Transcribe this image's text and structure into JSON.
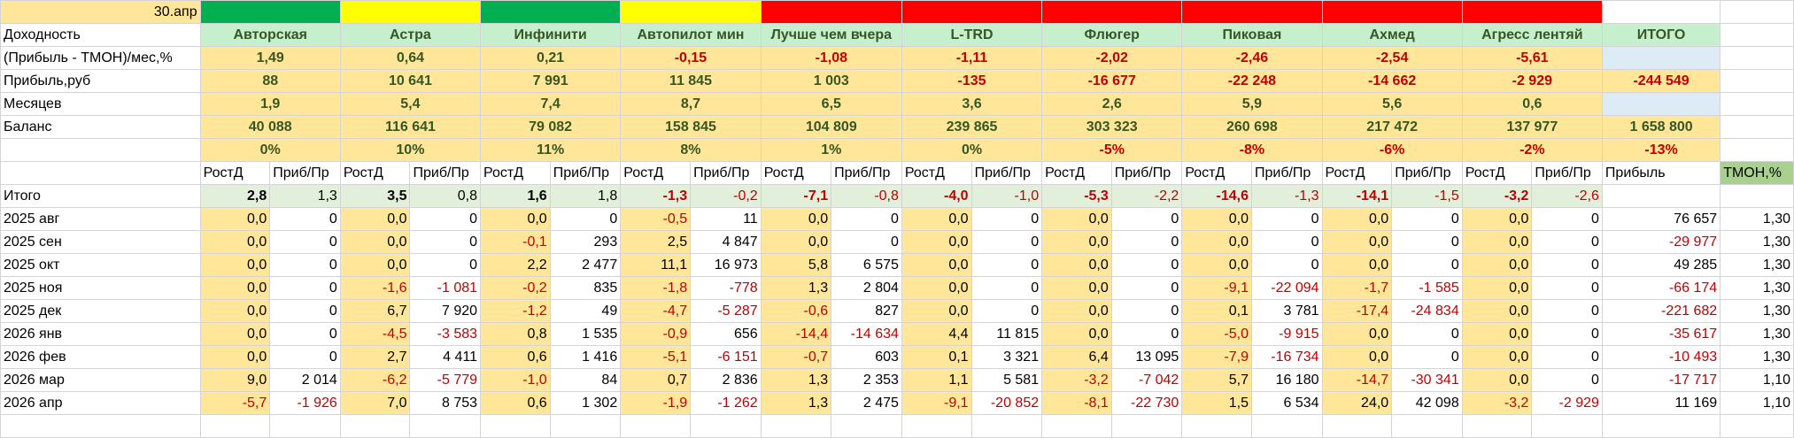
{
  "date_cell": "30.апр",
  "band_colors": [
    "#00b050",
    "#ffff00",
    "#00b050",
    "#ffff00",
    "#ff0000",
    "#ff0000",
    "#ff0000",
    "#ff0000",
    "#ff0000",
    "#ff0000"
  ],
  "strategies": [
    "Авторская",
    "Астра",
    "Инфинити",
    "Автопилот мин",
    "Лучше чем вчера",
    "L-TRD",
    "Флюгер",
    "Пиковая",
    "Ахмед",
    "Агресс лентяй"
  ],
  "total_header": "ИТОГО",
  "summary_rows": [
    {
      "label": "Доходность",
      "values": []
    },
    {
      "label": "(Прибыль - ТМОН)/мес,%",
      "values": [
        "1,49",
        "0,64",
        "0,21",
        "-0,15",
        "-1,08",
        "-1,11",
        "-2,02",
        "-2,46",
        "-2,54",
        "-5,61"
      ],
      "total": ""
    },
    {
      "label": "Прибыль,руб",
      "values": [
        "88",
        "10 641",
        "7 991",
        "11 845",
        "1 003",
        "-135",
        "-16 677",
        "-22 248",
        "-14 662",
        "-2 929"
      ],
      "total": "-244 549"
    },
    {
      "label": "Месяцев",
      "values": [
        "1,9",
        "5,4",
        "7,4",
        "8,7",
        "6,5",
        "3,6",
        "2,6",
        "5,9",
        "5,6",
        "0,6"
      ],
      "total": ""
    },
    {
      "label": "Баланс",
      "values": [
        "40 088",
        "116 641",
        "79 082",
        "158 845",
        "104 809",
        "239 865",
        "303 323",
        "260 698",
        "217 472",
        "137 977"
      ],
      "total": "1 658 800"
    },
    {
      "label": "",
      "values": [
        "0%",
        "10%",
        "11%",
        "8%",
        "1%",
        "0%",
        "-5%",
        "-8%",
        "-6%",
        "-2%"
      ],
      "total": "-13%"
    }
  ],
  "sub_headers": {
    "rost": "РостД",
    "prib": "Приб/Пр",
    "profit": "Прибыль",
    "tmon": "ТМОН,%"
  },
  "total_row": {
    "label": "Итого",
    "pairs": [
      [
        "2,8",
        "1,3"
      ],
      [
        "3,5",
        "0,8"
      ],
      [
        "1,6",
        "1,8"
      ],
      [
        "-1,3",
        "-0,2"
      ],
      [
        "-7,1",
        "-0,8"
      ],
      [
        "-4,0",
        "-1,0"
      ],
      [
        "-5,3",
        "-2,2"
      ],
      [
        "-14,6",
        "-1,3"
      ],
      [
        "-14,1",
        "-1,5"
      ],
      [
        "-3,2",
        "-2,6"
      ]
    ]
  },
  "monthly_rows": [
    {
      "month": "2025 авг",
      "pairs": [
        [
          "0,0",
          "0"
        ],
        [
          "0,0",
          "0"
        ],
        [
          "0,0",
          "0"
        ],
        [
          "-0,5",
          "11"
        ],
        [
          "0,0",
          "0"
        ],
        [
          "0,0",
          "0"
        ],
        [
          "0,0",
          "0"
        ],
        [
          "0,0",
          "0"
        ],
        [
          "0,0",
          "0"
        ],
        [
          "0,0",
          "0"
        ]
      ],
      "profit": "76 657",
      "tmon": "1,30"
    },
    {
      "month": "2025 сен",
      "pairs": [
        [
          "0,0",
          "0"
        ],
        [
          "0,0",
          "0"
        ],
        [
          "-0,1",
          "293"
        ],
        [
          "2,5",
          "4 847"
        ],
        [
          "0,0",
          "0"
        ],
        [
          "0,0",
          "0"
        ],
        [
          "0,0",
          "0"
        ],
        [
          "0,0",
          "0"
        ],
        [
          "0,0",
          "0"
        ],
        [
          "0,0",
          "0"
        ]
      ],
      "profit": "-29 977",
      "tmon": "1,30"
    },
    {
      "month": "2025 окт",
      "pairs": [
        [
          "0,0",
          "0"
        ],
        [
          "0,0",
          "0"
        ],
        [
          "2,2",
          "2 477"
        ],
        [
          "11,1",
          "16 973"
        ],
        [
          "5,8",
          "6 575"
        ],
        [
          "0,0",
          "0"
        ],
        [
          "0,0",
          "0"
        ],
        [
          "0,0",
          "0"
        ],
        [
          "0,0",
          "0"
        ],
        [
          "0,0",
          "0"
        ]
      ],
      "profit": "49 285",
      "tmon": "1,30"
    },
    {
      "month": "2025 ноя",
      "pairs": [
        [
          "0,0",
          "0"
        ],
        [
          "-1,6",
          "-1 081"
        ],
        [
          "-0,2",
          "835"
        ],
        [
          "-1,8",
          "-778"
        ],
        [
          "1,3",
          "2 804"
        ],
        [
          "0,0",
          "0"
        ],
        [
          "0,0",
          "0"
        ],
        [
          "-9,1",
          "-22 094"
        ],
        [
          "-1,7",
          "-1 585"
        ],
        [
          "0,0",
          "0"
        ]
      ],
      "profit": "-66 174",
      "tmon": "1,30"
    },
    {
      "month": "2025 дек",
      "pairs": [
        [
          "0,0",
          "0"
        ],
        [
          "6,7",
          "7 920"
        ],
        [
          "-1,2",
          "49"
        ],
        [
          "-4,7",
          "-5 287"
        ],
        [
          "-0,6",
          "827"
        ],
        [
          "0,0",
          "0"
        ],
        [
          "0,0",
          "0"
        ],
        [
          "0,1",
          "3 781"
        ],
        [
          "-17,4",
          "-24 834"
        ],
        [
          "0,0",
          "0"
        ]
      ],
      "profit": "-221 682",
      "tmon": "1,30"
    },
    {
      "month": "2026 янв",
      "pairs": [
        [
          "0,0",
          "0"
        ],
        [
          "-4,5",
          "-3 583"
        ],
        [
          "0,8",
          "1 535"
        ],
        [
          "-0,9",
          "656"
        ],
        [
          "-14,4",
          "-14 634"
        ],
        [
          "4,4",
          "11 815"
        ],
        [
          "0,0",
          "0"
        ],
        [
          "-5,0",
          "-9 915"
        ],
        [
          "0,0",
          "0"
        ],
        [
          "0,0",
          "0"
        ]
      ],
      "profit": "-35 617",
      "tmon": "1,30"
    },
    {
      "month": "2026 фев",
      "pairs": [
        [
          "0,0",
          "0"
        ],
        [
          "2,7",
          "4 411"
        ],
        [
          "0,6",
          "1 416"
        ],
        [
          "-5,1",
          "-6 151"
        ],
        [
          "-0,7",
          "603"
        ],
        [
          "0,1",
          "3 321"
        ],
        [
          "6,4",
          "13 095"
        ],
        [
          "-7,9",
          "-16 734"
        ],
        [
          "0,0",
          "0"
        ],
        [
          "0,0",
          "0"
        ]
      ],
      "profit": "-10 493",
      "tmon": "1,30"
    },
    {
      "month": "2026 мар",
      "pairs": [
        [
          "9,0",
          "2 014"
        ],
        [
          "-6,2",
          "-5 779"
        ],
        [
          "-1,0",
          "84"
        ],
        [
          "0,7",
          "2 836"
        ],
        [
          "1,3",
          "2 353"
        ],
        [
          "1,1",
          "5 581"
        ],
        [
          "-3,2",
          "-7 042"
        ],
        [
          "5,7",
          "16 180"
        ],
        [
          "-14,7",
          "-30 341"
        ],
        [
          "0,0",
          "0"
        ]
      ],
      "profit": "-17 717",
      "tmon": "1,10"
    },
    {
      "month": "2026 апр",
      "pairs": [
        [
          "-5,7",
          "-1 926"
        ],
        [
          "7,0",
          "8 753"
        ],
        [
          "0,6",
          "1 302"
        ],
        [
          "-1,9",
          "-1 262"
        ],
        [
          "1,3",
          "2 475"
        ],
        [
          "-9,1",
          "-20 852"
        ],
        [
          "-8,1",
          "-22 730"
        ],
        [
          "1,5",
          "6 534"
        ],
        [
          "24,0",
          "42 098"
        ],
        [
          "-3,2",
          "-2 929"
        ]
      ],
      "profit": "11 169",
      "tmon": "1,10"
    }
  ]
}
